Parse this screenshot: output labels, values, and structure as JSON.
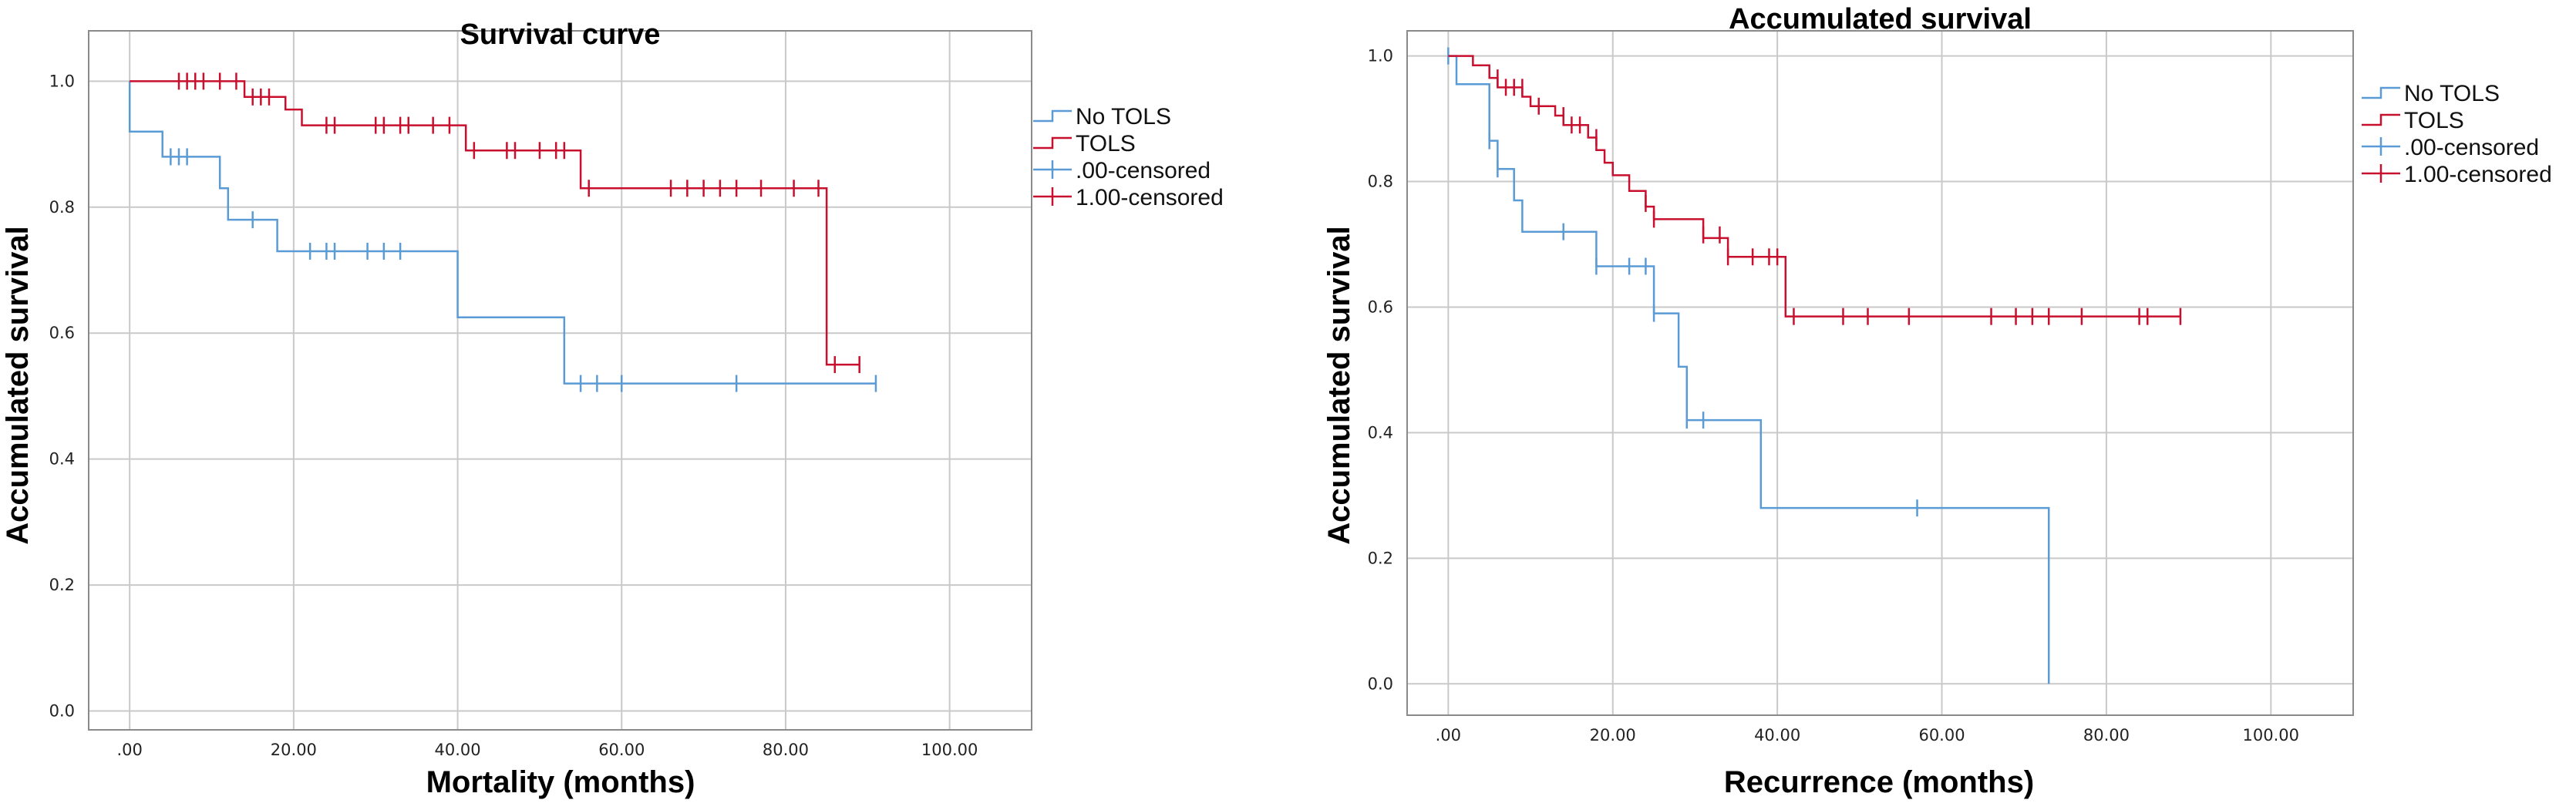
{
  "chart_data": [
    {
      "type": "line",
      "title": "Survival curve",
      "xlabel": "Mortality (months)",
      "ylabel": "Accumulated survival",
      "xlim": [
        -5,
        110
      ],
      "ylim": [
        -0.03,
        1.08
      ],
      "x_ticks": [
        0,
        20,
        40,
        60,
        80,
        100
      ],
      "x_tick_labels": [
        ".00",
        "20.00",
        "40.00",
        "60.00",
        "80.00",
        "100.00"
      ],
      "y_ticks": [
        0,
        0.2,
        0.4,
        0.6,
        0.8,
        1.0
      ],
      "y_tick_labels": [
        "0.0",
        "0.2",
        "0.4",
        "0.6",
        "0.8",
        "1.0"
      ],
      "grid": true,
      "legend_position": "top-right",
      "legend": [
        "No TOLS",
        "TOLS",
        ".00-censored",
        "1.00-censored"
      ],
      "series": [
        {
          "name": "No TOLS",
          "color": "#5b9bd5",
          "steps": [
            [
              0,
              1.0
            ],
            [
              0,
              0.92
            ],
            [
              4,
              0.88
            ],
            [
              11,
              0.83
            ],
            [
              12,
              0.78
            ],
            [
              18,
              0.73
            ],
            [
              40,
              0.625
            ],
            [
              53,
              0.52
            ],
            [
              91,
              0.52
            ]
          ],
          "censored": [
            [
              5,
              0.88
            ],
            [
              6,
              0.88
            ],
            [
              7,
              0.88
            ],
            [
              15,
              0.78
            ],
            [
              22,
              0.73
            ],
            [
              24,
              0.73
            ],
            [
              25,
              0.73
            ],
            [
              29,
              0.73
            ],
            [
              31,
              0.73
            ],
            [
              33,
              0.73
            ],
            [
              55,
              0.52
            ],
            [
              57,
              0.52
            ],
            [
              60,
              0.52
            ],
            [
              74,
              0.52
            ],
            [
              91,
              0.52
            ]
          ]
        },
        {
          "name": "TOLS",
          "color": "#c8102e",
          "steps": [
            [
              0,
              1.0
            ],
            [
              14,
              0.975
            ],
            [
              19,
              0.955
            ],
            [
              21,
              0.93
            ],
            [
              41,
              0.89
            ],
            [
              55,
              0.83
            ],
            [
              85,
              0.55
            ],
            [
              89,
              0.55
            ]
          ],
          "censored": [
            [
              6,
              1.0
            ],
            [
              7,
              1.0
            ],
            [
              8,
              1.0
            ],
            [
              9,
              1.0
            ],
            [
              11,
              1.0
            ],
            [
              13,
              1.0
            ],
            [
              15,
              0.975
            ],
            [
              16,
              0.975
            ],
            [
              17,
              0.975
            ],
            [
              24,
              0.93
            ],
            [
              25,
              0.93
            ],
            [
              30,
              0.93
            ],
            [
              31,
              0.93
            ],
            [
              33,
              0.93
            ],
            [
              34,
              0.93
            ],
            [
              37,
              0.93
            ],
            [
              39,
              0.93
            ],
            [
              42,
              0.89
            ],
            [
              46,
              0.89
            ],
            [
              47,
              0.89
            ],
            [
              50,
              0.89
            ],
            [
              52,
              0.89
            ],
            [
              53,
              0.89
            ],
            [
              56,
              0.83
            ],
            [
              66,
              0.83
            ],
            [
              68,
              0.83
            ],
            [
              70,
              0.83
            ],
            [
              72,
              0.83
            ],
            [
              74,
              0.83
            ],
            [
              77,
              0.83
            ],
            [
              81,
              0.83
            ],
            [
              84,
              0.83
            ],
            [
              86,
              0.55
            ],
            [
              89,
              0.55
            ]
          ]
        }
      ]
    },
    {
      "type": "line",
      "title": "Accumulated survival",
      "xlabel": "Recurrence (months)",
      "ylabel": "Accumulated survival",
      "xlim": [
        -5,
        110
      ],
      "ylim": [
        -0.05,
        1.04
      ],
      "x_ticks": [
        0,
        20,
        40,
        60,
        80,
        100
      ],
      "x_tick_labels": [
        ".00",
        "20.00",
        "40.00",
        "60.00",
        "80.00",
        "100.00"
      ],
      "y_ticks": [
        0,
        0.2,
        0.4,
        0.6,
        0.8,
        1.0
      ],
      "y_tick_labels": [
        "0.0",
        "0.2",
        "0.4",
        "0.6",
        "0.8",
        "1.0"
      ],
      "grid": true,
      "legend_position": "top-right",
      "legend": [
        "No TOLS",
        "TOLS",
        ".00-censored",
        "1.00-censored"
      ],
      "series": [
        {
          "name": "No TOLS",
          "color": "#5b9bd5",
          "steps": [
            [
              0,
              1.0
            ],
            [
              1,
              0.955
            ],
            [
              5,
              0.865
            ],
            [
              6,
              0.82
            ],
            [
              8,
              0.77
            ],
            [
              9,
              0.72
            ],
            [
              18,
              0.665
            ],
            [
              25,
              0.59
            ],
            [
              28,
              0.505
            ],
            [
              29,
              0.42
            ],
            [
              38,
              0.28
            ],
            [
              73,
              0.28
            ],
            [
              73,
              0.0
            ]
          ],
          "censored": [
            [
              0,
              1.0
            ],
            [
              5,
              0.865
            ],
            [
              6,
              0.82
            ],
            [
              14,
              0.72
            ],
            [
              18,
              0.665
            ],
            [
              22,
              0.665
            ],
            [
              24,
              0.665
            ],
            [
              25,
              0.59
            ],
            [
              29,
              0.42
            ],
            [
              31,
              0.42
            ],
            [
              57,
              0.28
            ]
          ]
        },
        {
          "name": "TOLS",
          "color": "#c8102e",
          "steps": [
            [
              0,
              1.0
            ],
            [
              3,
              0.985
            ],
            [
              5,
              0.965
            ],
            [
              6,
              0.95
            ],
            [
              9,
              0.935
            ],
            [
              10,
              0.92
            ],
            [
              13,
              0.905
            ],
            [
              14,
              0.89
            ],
            [
              17,
              0.87
            ],
            [
              18,
              0.85
            ],
            [
              19,
              0.83
            ],
            [
              20,
              0.81
            ],
            [
              22,
              0.785
            ],
            [
              24,
              0.76
            ],
            [
              25,
              0.74
            ],
            [
              31,
              0.71
            ],
            [
              34,
              0.68
            ],
            [
              41,
              0.585
            ],
            [
              89,
              0.585
            ]
          ],
          "censored": [
            [
              6,
              0.965
            ],
            [
              7,
              0.95
            ],
            [
              8,
              0.95
            ],
            [
              9,
              0.95
            ],
            [
              11,
              0.92
            ],
            [
              14,
              0.905
            ],
            [
              15,
              0.89
            ],
            [
              16,
              0.89
            ],
            [
              18,
              0.87
            ],
            [
              24,
              0.765
            ],
            [
              25,
              0.74
            ],
            [
              31,
              0.715
            ],
            [
              33,
              0.715
            ],
            [
              34,
              0.68
            ],
            [
              37,
              0.68
            ],
            [
              39,
              0.68
            ],
            [
              40,
              0.68
            ],
            [
              42,
              0.585
            ],
            [
              48,
              0.585
            ],
            [
              51,
              0.585
            ],
            [
              56,
              0.585
            ],
            [
              66,
              0.585
            ],
            [
              69,
              0.585
            ],
            [
              71,
              0.585
            ],
            [
              73,
              0.585
            ],
            [
              77,
              0.585
            ],
            [
              84,
              0.585
            ],
            [
              85,
              0.585
            ],
            [
              89,
              0.585
            ]
          ]
        }
      ]
    }
  ]
}
